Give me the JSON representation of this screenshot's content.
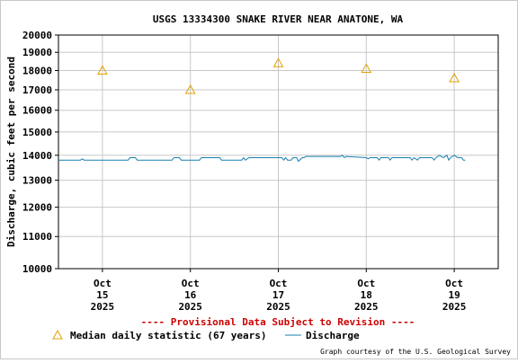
{
  "chart_data": {
    "type": "line",
    "title": "USGS 13334300 SNAKE RIVER NEAR ANATONE, WA",
    "ylabel": "Discharge, cubic feet per second",
    "xlabel": "",
    "y_scale": "log",
    "ylim": [
      10000,
      20000
    ],
    "y_ticks": [
      10000,
      11000,
      12000,
      13000,
      14000,
      15000,
      16000,
      17000,
      18000,
      19000,
      20000
    ],
    "y_tick_labels": [
      "10000",
      "11000",
      "12000",
      "13000",
      "14000",
      "15000",
      "16000",
      "17000",
      "18000",
      "19000",
      "20000"
    ],
    "xlim": [
      "2025-10-14 12:00",
      "2025-10-19 12:00"
    ],
    "x_ticks": [
      {
        "month": "Oct",
        "day": "15",
        "year": "2025",
        "x": "2025-10-15 00:00"
      },
      {
        "month": "Oct",
        "day": "16",
        "year": "2025",
        "x": "2025-10-16 00:00"
      },
      {
        "month": "Oct",
        "day": "17",
        "year": "2025",
        "x": "2025-10-17 00:00"
      },
      {
        "month": "Oct",
        "day": "18",
        "year": "2025",
        "x": "2025-10-18 00:00"
      },
      {
        "month": "Oct",
        "day": "19",
        "year": "2025",
        "x": "2025-10-19 00:00"
      }
    ],
    "grid": true,
    "series": [
      {
        "name": "Median daily statistic (67 years)",
        "kind": "marker-triangle",
        "color": "#e0a000",
        "points": [
          {
            "x": "2025-10-15 00:00",
            "y": 18000
          },
          {
            "x": "2025-10-16 00:00",
            "y": 17000
          },
          {
            "x": "2025-10-17 00:00",
            "y": 18400
          },
          {
            "x": "2025-10-18 00:00",
            "y": 18100
          },
          {
            "x": "2025-10-19 00:00",
            "y": 17600
          }
        ]
      },
      {
        "name": "Discharge",
        "kind": "line",
        "color": "#1a7fae",
        "points": [
          {
            "x": "2025-10-14 12:00",
            "y": 13800
          },
          {
            "x": "2025-10-14 18:00",
            "y": 13800
          },
          {
            "x": "2025-10-14 18:30",
            "y": 13850
          },
          {
            "x": "2025-10-14 19:00",
            "y": 13800
          },
          {
            "x": "2025-10-15 07:00",
            "y": 13800
          },
          {
            "x": "2025-10-15 07:30",
            "y": 13900
          },
          {
            "x": "2025-10-15 09:00",
            "y": 13900
          },
          {
            "x": "2025-10-15 09:30",
            "y": 13800
          },
          {
            "x": "2025-10-15 19:00",
            "y": 13800
          },
          {
            "x": "2025-10-15 19:30",
            "y": 13900
          },
          {
            "x": "2025-10-15 21:00",
            "y": 13900
          },
          {
            "x": "2025-10-15 21:30",
            "y": 13800
          },
          {
            "x": "2025-10-16 00:00",
            "y": 13800
          },
          {
            "x": "2025-10-16 02:30",
            "y": 13800
          },
          {
            "x": "2025-10-16 03:00",
            "y": 13900
          },
          {
            "x": "2025-10-16 08:00",
            "y": 13900
          },
          {
            "x": "2025-10-16 08:30",
            "y": 13800
          },
          {
            "x": "2025-10-16 14:00",
            "y": 13800
          },
          {
            "x": "2025-10-16 14:30",
            "y": 13900
          },
          {
            "x": "2025-10-16 15:00",
            "y": 13800
          },
          {
            "x": "2025-10-16 16:00",
            "y": 13900
          },
          {
            "x": "2025-10-17 00:00",
            "y": 13900
          },
          {
            "x": "2025-10-17 01:00",
            "y": 13900
          },
          {
            "x": "2025-10-17 01:30",
            "y": 13800
          },
          {
            "x": "2025-10-17 02:00",
            "y": 13900
          },
          {
            "x": "2025-10-17 02:30",
            "y": 13800
          },
          {
            "x": "2025-10-17 03:30",
            "y": 13800
          },
          {
            "x": "2025-10-17 04:00",
            "y": 13900
          },
          {
            "x": "2025-10-17 05:00",
            "y": 13900
          },
          {
            "x": "2025-10-17 05:30",
            "y": 13750
          },
          {
            "x": "2025-10-17 06:30",
            "y": 13900
          },
          {
            "x": "2025-10-17 07:00",
            "y": 13900
          },
          {
            "x": "2025-10-17 07:30",
            "y": 13950
          },
          {
            "x": "2025-10-17 17:00",
            "y": 13950
          },
          {
            "x": "2025-10-17 17:30",
            "y": 14000
          },
          {
            "x": "2025-10-17 18:00",
            "y": 13900
          },
          {
            "x": "2025-10-17 18:30",
            "y": 13950
          },
          {
            "x": "2025-10-18 00:00",
            "y": 13900
          },
          {
            "x": "2025-10-18 00:30",
            "y": 13850
          },
          {
            "x": "2025-10-18 01:00",
            "y": 13900
          },
          {
            "x": "2025-10-18 03:00",
            "y": 13900
          },
          {
            "x": "2025-10-18 03:30",
            "y": 13800
          },
          {
            "x": "2025-10-18 04:00",
            "y": 13900
          },
          {
            "x": "2025-10-18 06:00",
            "y": 13900
          },
          {
            "x": "2025-10-18 06:30",
            "y": 13800
          },
          {
            "x": "2025-10-18 07:00",
            "y": 13900
          },
          {
            "x": "2025-10-18 12:00",
            "y": 13900
          },
          {
            "x": "2025-10-18 12:30",
            "y": 13800
          },
          {
            "x": "2025-10-18 13:00",
            "y": 13900
          },
          {
            "x": "2025-10-18 14:00",
            "y": 13800
          },
          {
            "x": "2025-10-18 14:30",
            "y": 13900
          },
          {
            "x": "2025-10-18 18:00",
            "y": 13900
          },
          {
            "x": "2025-10-18 18:30",
            "y": 13800
          },
          {
            "x": "2025-10-18 19:00",
            "y": 13900
          },
          {
            "x": "2025-10-18 20:00",
            "y": 14000
          },
          {
            "x": "2025-10-18 21:00",
            "y": 13900
          },
          {
            "x": "2025-10-18 22:00",
            "y": 14000
          },
          {
            "x": "2025-10-18 22:30",
            "y": 13800
          },
          {
            "x": "2025-10-18 23:00",
            "y": 13900
          },
          {
            "x": "2025-10-19 00:00",
            "y": 14000
          },
          {
            "x": "2025-10-19 01:00",
            "y": 13900
          },
          {
            "x": "2025-10-19 02:00",
            "y": 13900
          },
          {
            "x": "2025-10-19 02:30",
            "y": 13800
          },
          {
            "x": "2025-10-19 03:00",
            "y": 13800
          }
        ]
      }
    ],
    "banner": "---- Provisional Data Subject to Revision ----",
    "credit": "Graph courtesy of the U.S. Geological Survey",
    "legend": {
      "placement": "bottom"
    }
  }
}
